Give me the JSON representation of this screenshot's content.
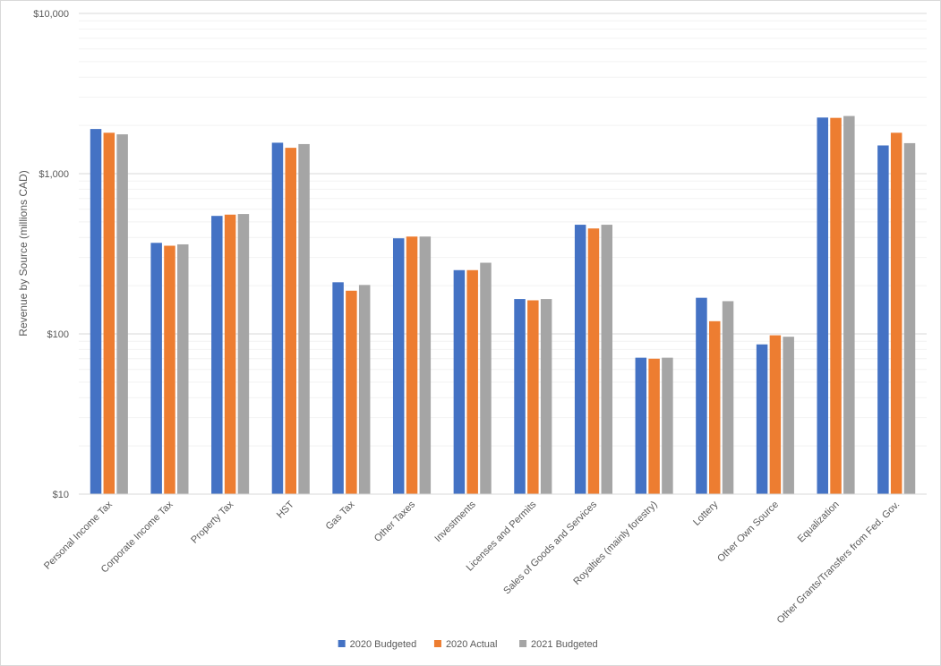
{
  "chart_data": {
    "type": "bar",
    "title": "",
    "xlabel": "",
    "ylabel": "Revenue by Source (millions CAD)",
    "yscale": "log",
    "ylim": [
      10,
      10000
    ],
    "yticks": [
      10,
      100,
      1000,
      10000
    ],
    "ytick_labels": [
      "$10",
      "$100",
      "$1,000",
      "$10,000"
    ],
    "grid": "major and minor horizontal gridlines",
    "legend_position": "bottom",
    "categories": [
      "Personal Income Tax",
      "Corporate Income Tax",
      "Property Tax",
      "HST",
      "Gas Tax",
      "Other Taxes",
      "Investments",
      "Licenses and Permits",
      "Sales of Goods and Services",
      "Royalties (mainly forestry)",
      "Lottery",
      "Other Own Source",
      "Equalization",
      "Other Grants/Transfers from Fed. Gov."
    ],
    "series": [
      {
        "name": "2020 Budgeted",
        "color": "#4472C4",
        "values": [
          1900,
          370,
          545,
          1560,
          210,
          395,
          250,
          165,
          480,
          71,
          168,
          86,
          2240,
          1500
        ]
      },
      {
        "name": "2020 Actual",
        "color": "#ED7D31",
        "values": [
          1800,
          355,
          555,
          1450,
          186,
          405,
          250,
          162,
          455,
          70,
          120,
          98,
          2230,
          1800
        ]
      },
      {
        "name": "2021 Budgeted",
        "color": "#A5A5A5",
        "values": [
          1760,
          362,
          560,
          1530,
          202,
          405,
          278,
          165,
          480,
          71,
          160,
          96,
          2290,
          1550
        ]
      }
    ]
  }
}
